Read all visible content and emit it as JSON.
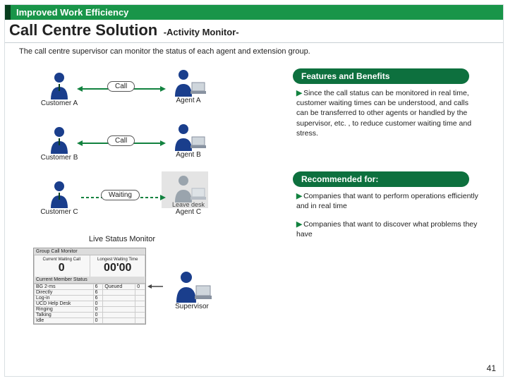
{
  "colors": {
    "accent": "#199549",
    "accentDark": "#083e1e",
    "pill": "#0d703e",
    "personBlue": "#1a3e8c",
    "personGrey": "#9aa4ad",
    "border": "#d9dfe2"
  },
  "header": {
    "category": "Improved Work Efficiency",
    "title": "Call Centre Solution",
    "subtitle": "-Activity Monitor-"
  },
  "description": "The call centre supervisor can monitor the status of each agent and extension group.",
  "left": {
    "customers": {
      "a": "Customer A",
      "b": "Customer B",
      "c": "Customer C"
    },
    "agents": {
      "a": "Agent A",
      "b": "Agent B",
      "c": "Agent C"
    },
    "links": {
      "call": "Call",
      "waiting": "Waiting",
      "leave": "Leave desk"
    },
    "monitorLabel": "Live Status Monitor",
    "supervisor": "Supervisor",
    "monitor": {
      "title": "Group Call Monitor",
      "waitingLabel": "Current Waiting Call",
      "waitingValue": "0",
      "longestLabel": "Longest Waiting Time",
      "longestValue": "00'00",
      "statusTitle": "Current Member Status",
      "rows": [
        [
          "BG 2-ms",
          "6",
          "Queued",
          "0"
        ],
        [
          "Directly",
          "6",
          "",
          ""
        ],
        [
          "Log-in",
          "6",
          "",
          ""
        ],
        [
          "UCD Help Desk",
          "0",
          "",
          ""
        ],
        [
          "Ringing",
          "0",
          "",
          ""
        ],
        [
          "Talking",
          "0",
          "",
          ""
        ],
        [
          "Idle",
          "0",
          "",
          ""
        ]
      ]
    }
  },
  "right": {
    "featuresTitle": "Features and Benefits",
    "feature1": "Since the call status can be monitored in real time, customer waiting times can be understood, and calls can be transferred to other agents or handled by the supervisor, etc. , to reduce customer waiting time and stress.",
    "recTitle": "Recommended for:",
    "rec1": "Companies that want to perform operations efficiently and in real time",
    "rec2": "Companies that want to discover what problems they have"
  },
  "pageNumber": "41"
}
